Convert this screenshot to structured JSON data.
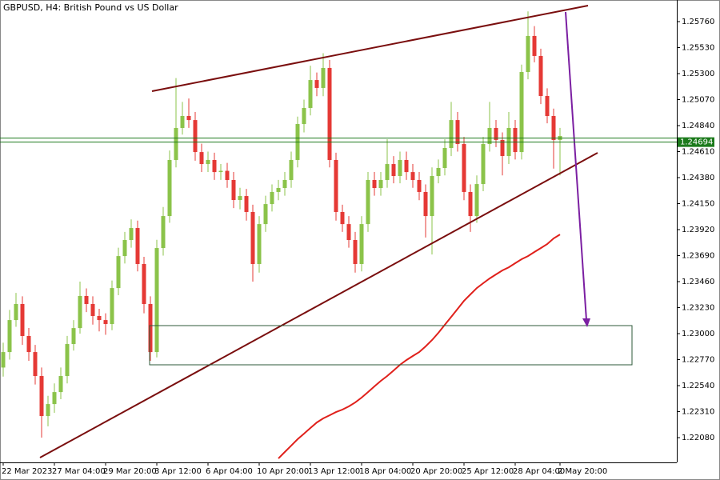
{
  "chart_data": {
    "type": "candlestick",
    "title": "GBPUSD, H4:  British Pound vs US Dollar",
    "up_color": "#8bc34a",
    "down_color": "#e53935",
    "ylim": [
      1.21861,
      1.25951
    ],
    "yticks": [
      {
        "value": 1.2576,
        "label": "1.25760"
      },
      {
        "value": 1.2553,
        "label": "1.25530"
      },
      {
        "value": 1.253,
        "label": "1.25300"
      },
      {
        "value": 1.2507,
        "label": "1.25070"
      },
      {
        "value": 1.2484,
        "label": "1.24840"
      },
      {
        "value": 1.2461,
        "label": "1.24610"
      },
      {
        "value": 1.2438,
        "label": "1.24380"
      },
      {
        "value": 1.2415,
        "label": "1.24150"
      },
      {
        "value": 1.2392,
        "label": "1.23920"
      },
      {
        "value": 1.2369,
        "label": "1.23690"
      },
      {
        "value": 1.2346,
        "label": "1.23460"
      },
      {
        "value": 1.2323,
        "label": "1.23230"
      },
      {
        "value": 1.23,
        "label": "1.23000"
      },
      {
        "value": 1.2277,
        "label": "1.22770"
      },
      {
        "value": 1.2254,
        "label": "1.22540"
      },
      {
        "value": 1.2231,
        "label": "1.22310"
      },
      {
        "value": 1.2208,
        "label": "1.22080"
      }
    ],
    "current_price": 1.24694,
    "current_color": "#1b7a1b",
    "categories": [
      "22 Mar 2023",
      null,
      null,
      null,
      null,
      null,
      null,
      null,
      "27 Mar 04:00",
      null,
      null,
      null,
      null,
      null,
      null,
      null,
      "29 Mar 20:00",
      null,
      null,
      null,
      null,
      null,
      null,
      null,
      "3 Apr 12:00",
      null,
      null,
      null,
      null,
      null,
      null,
      null,
      "6 Apr 04:00",
      null,
      null,
      null,
      null,
      null,
      null,
      null,
      "10 Apr 20:00",
      null,
      null,
      null,
      null,
      null,
      null,
      null,
      "13 Apr 12:00",
      null,
      null,
      null,
      null,
      null,
      null,
      null,
      "18 Apr 04:00",
      null,
      null,
      null,
      null,
      null,
      null,
      null,
      "20 Apr 20:00",
      null,
      null,
      null,
      null,
      null,
      null,
      null,
      "25 Apr 12:00",
      null,
      null,
      null,
      null,
      null,
      null,
      null,
      "28 Apr 04:00",
      null,
      null,
      null,
      null,
      null,
      null,
      "2 May 20:00"
    ],
    "ohlc": [
      [
        1.227,
        1.2292,
        1.2262,
        1.22837
      ],
      [
        1.22837,
        1.2321,
        1.2277,
        1.2312
      ],
      [
        1.2312,
        1.2336,
        1.2306,
        1.23262
      ],
      [
        1.23262,
        1.2333,
        1.229,
        1.22979
      ],
      [
        1.22979,
        1.2305,
        1.2276,
        1.22837
      ],
      [
        1.22837,
        1.229,
        1.2255,
        1.22625
      ],
      [
        1.22625,
        1.227,
        1.2208,
        1.22271
      ],
      [
        1.22271,
        1.2245,
        1.2218,
        1.22377
      ],
      [
        1.22377,
        1.2256,
        1.223,
        1.22483
      ],
      [
        1.22483,
        1.227,
        1.2242,
        1.22625
      ],
      [
        1.22625,
        1.2298,
        1.2256,
        1.22908
      ],
      [
        1.22908,
        1.2312,
        1.2285,
        1.23049
      ],
      [
        1.23049,
        1.2346,
        1.23,
        1.23333
      ],
      [
        1.23333,
        1.234,
        1.2319,
        1.23262
      ],
      [
        1.23262,
        1.2333,
        1.2308,
        1.23156
      ],
      [
        1.23156,
        1.2322,
        1.2302,
        1.2312
      ],
      [
        1.2312,
        1.2318,
        1.2299,
        1.23085
      ],
      [
        1.23085,
        1.2347,
        1.2303,
        1.23403
      ],
      [
        1.23403,
        1.2376,
        1.2334,
        1.23686
      ],
      [
        1.23686,
        1.239,
        1.2362,
        1.23828
      ],
      [
        1.23828,
        1.2401,
        1.2376,
        1.23934
      ],
      [
        1.23934,
        1.24,
        1.2355,
        1.23616
      ],
      [
        1.23616,
        1.2368,
        1.2318,
        1.23262
      ],
      [
        1.23262,
        1.2333,
        1.2276,
        1.22837
      ],
      [
        1.22837,
        1.2383,
        1.2279,
        1.23757
      ],
      [
        1.23757,
        1.2412,
        1.2369,
        1.2404
      ],
      [
        1.2404,
        1.2462,
        1.2398,
        1.24536
      ],
      [
        1.24536,
        1.2526,
        1.2447,
        1.24819
      ],
      [
        1.24819,
        1.2505,
        1.2476,
        1.24925
      ],
      [
        1.24925,
        1.2508,
        1.2482,
        1.24889
      ],
      [
        1.24889,
        1.2496,
        1.2453,
        1.24606
      ],
      [
        1.24606,
        1.2468,
        1.2443,
        1.245
      ],
      [
        1.245,
        1.2461,
        1.2443,
        1.24536
      ],
      [
        1.24536,
        1.246,
        1.2436,
        1.24429
      ],
      [
        1.24429,
        1.245,
        1.2436,
        1.2444
      ],
      [
        1.2444,
        1.2451,
        1.2429,
        1.24359
      ],
      [
        1.24359,
        1.2443,
        1.2411,
        1.24182
      ],
      [
        1.24182,
        1.2429,
        1.241,
        1.24217
      ],
      [
        1.24217,
        1.2428,
        1.24,
        1.24076
      ],
      [
        1.24076,
        1.2414,
        1.2346,
        1.23616
      ],
      [
        1.23616,
        1.2404,
        1.2354,
        1.23969
      ],
      [
        1.23969,
        1.2422,
        1.239,
        1.24146
      ],
      [
        1.24146,
        1.2432,
        1.2408,
        1.24253
      ],
      [
        1.24253,
        1.2436,
        1.2418,
        1.24288
      ],
      [
        1.24288,
        1.2443,
        1.2422,
        1.24359
      ],
      [
        1.24359,
        1.2461,
        1.2429,
        1.24536
      ],
      [
        1.24536,
        1.2492,
        1.2447,
        1.24854
      ],
      [
        1.24854,
        1.2507,
        1.2478,
        1.24996
      ],
      [
        1.24996,
        1.2537,
        1.2493,
        1.25243
      ],
      [
        1.25243,
        1.2531,
        1.251,
        1.25173
      ],
      [
        1.25173,
        1.2548,
        1.251,
        1.2535
      ],
      [
        1.2535,
        1.2542,
        1.2447,
        1.24536
      ],
      [
        1.24536,
        1.246,
        1.24,
        1.24076
      ],
      [
        1.24076,
        1.2414,
        1.239,
        1.23969
      ],
      [
        1.23969,
        1.2404,
        1.2376,
        1.23828
      ],
      [
        1.23828,
        1.239,
        1.2354,
        1.23616
      ],
      [
        1.23616,
        1.2404,
        1.2355,
        1.23969
      ],
      [
        1.23969,
        1.2443,
        1.239,
        1.24359
      ],
      [
        1.24359,
        1.2443,
        1.2422,
        1.24288
      ],
      [
        1.24288,
        1.2443,
        1.2422,
        1.24359
      ],
      [
        1.24359,
        1.2472,
        1.2429,
        1.245
      ],
      [
        1.245,
        1.2457,
        1.2433,
        1.24394
      ],
      [
        1.24394,
        1.2461,
        1.2433,
        1.24536
      ],
      [
        1.24536,
        1.2461,
        1.2436,
        1.24429
      ],
      [
        1.24429,
        1.245,
        1.2429,
        1.24359
      ],
      [
        1.24359,
        1.2443,
        1.2418,
        1.24253
      ],
      [
        1.24253,
        1.2432,
        1.2385,
        1.2404
      ],
      [
        1.2404,
        1.2447,
        1.237,
        1.24394
      ],
      [
        1.24394,
        1.2454,
        1.2433,
        1.24465
      ],
      [
        1.24465,
        1.2472,
        1.244,
        1.24642
      ],
      [
        1.24642,
        1.2505,
        1.2457,
        1.24889
      ],
      [
        1.24889,
        1.2496,
        1.2461,
        1.24677
      ],
      [
        1.24677,
        1.2474,
        1.2418,
        1.24253
      ],
      [
        1.24253,
        1.2432,
        1.239,
        1.2404
      ],
      [
        1.2404,
        1.244,
        1.2398,
        1.24323
      ],
      [
        1.24323,
        1.2474,
        1.2426,
        1.24677
      ],
      [
        1.24677,
        1.2505,
        1.2461,
        1.24819
      ],
      [
        1.24819,
        1.2489,
        1.2465,
        1.24713
      ],
      [
        1.24713,
        1.2478,
        1.244,
        1.24571
      ],
      [
        1.24571,
        1.2496,
        1.245,
        1.24819
      ],
      [
        1.24819,
        1.2489,
        1.2454,
        1.24606
      ],
      [
        1.24606,
        1.2538,
        1.2454,
        1.25314
      ],
      [
        1.25314,
        1.2585,
        1.2525,
        1.25633
      ],
      [
        1.25633,
        1.2572,
        1.254,
        1.25456
      ],
      [
        1.25456,
        1.2552,
        1.2503,
        1.25102
      ],
      [
        1.25102,
        1.2517,
        1.2486,
        1.24925
      ],
      [
        1.24925,
        1.2499,
        1.2446,
        1.24713
      ],
      [
        1.24713,
        1.2482,
        1.244,
        1.24748
      ]
    ],
    "ma": {
      "color": "#e0201b",
      "values": [
        null,
        null,
        null,
        null,
        null,
        null,
        null,
        null,
        null,
        null,
        null,
        null,
        null,
        null,
        null,
        null,
        null,
        null,
        null,
        null,
        null,
        null,
        null,
        null,
        null,
        null,
        null,
        null,
        null,
        null,
        null,
        null,
        null,
        null,
        null,
        null,
        null,
        null,
        null,
        null,
        null,
        null,
        null,
        1.21896,
        1.21953,
        1.22009,
        1.22066,
        1.22115,
        1.22165,
        1.22214,
        1.2225,
        1.22278,
        1.22306,
        1.22328,
        1.22356,
        1.22391,
        1.22434,
        1.22483,
        1.22533,
        1.22582,
        1.22625,
        1.22674,
        1.22724,
        1.22766,
        1.22802,
        1.22837,
        1.22887,
        1.22943,
        1.23007,
        1.23078,
        1.23148,
        1.23219,
        1.2329,
        1.23347,
        1.23403,
        1.23446,
        1.23488,
        1.23524,
        1.23559,
        1.23587,
        1.23623,
        1.23658,
        1.23686,
        1.23722,
        1.23757,
        1.23792,
        1.23842,
        1.23877
      ]
    }
  }
}
